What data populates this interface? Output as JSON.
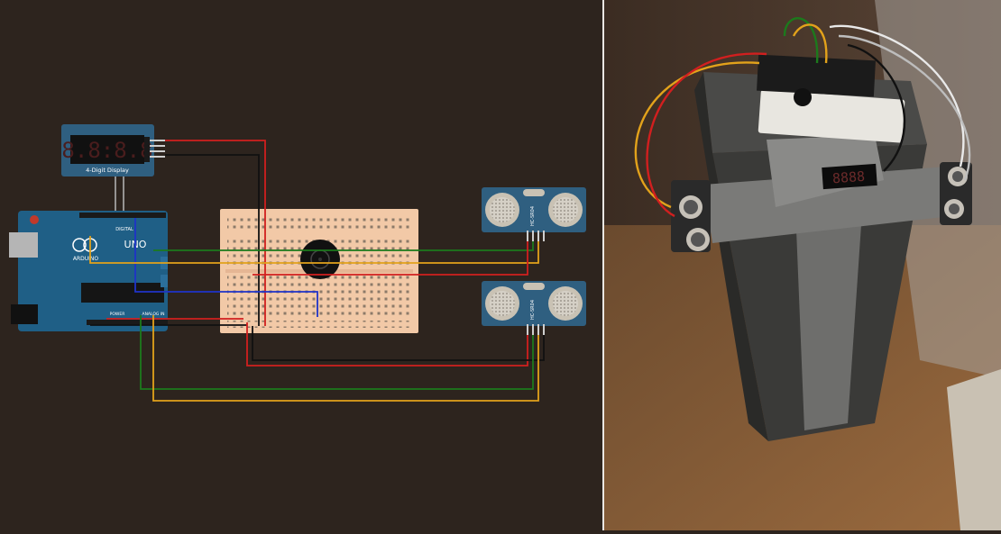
{
  "schematic": {
    "display_label": "4-Digit Display",
    "display_digits": "8.8:8.8",
    "board_brand": "ARDUINO",
    "board_model": "UNO",
    "board_digital_label": "DIGITAL",
    "board_power_label": "POWER",
    "board_analog_label": "ANALOG IN",
    "sensor_1_model": "HC-SR04",
    "sensor_2_model": "HC-SR04"
  },
  "photo": {
    "display_digits": "8888"
  },
  "colors": {
    "background": "#2d241e",
    "board": "#1f5f86",
    "breadboard": "#f2c9a7",
    "sensor": "#2f5f80",
    "wire_red": "#d11f1f",
    "wire_black": "#111111",
    "wire_green": "#1c7a1c",
    "wire_yellow": "#e2a21b",
    "wire_blue": "#1f33c9",
    "wire_grey": "#b8b8b8"
  }
}
